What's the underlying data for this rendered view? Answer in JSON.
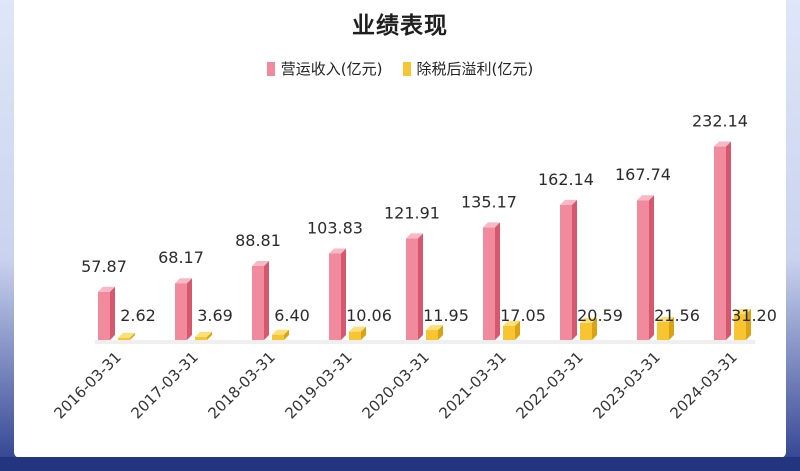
{
  "chart_data": {
    "type": "bar",
    "title": "业绩表现",
    "categories": [
      "2016-03-31",
      "2017-03-31",
      "2018-03-31",
      "2019-03-31",
      "2020-03-31",
      "2021-03-31",
      "2022-03-31",
      "2023-03-31",
      "2024-03-31"
    ],
    "series": [
      {
        "name": "营运收入(亿元)",
        "color": "#f08a9c",
        "values": [
          57.87,
          68.17,
          88.81,
          103.83,
          121.91,
          135.17,
          162.14,
          167.74,
          232.14
        ]
      },
      {
        "name": "除税后溢利(亿元)",
        "color": "#f7c531",
        "values": [
          2.62,
          3.69,
          6.4,
          10.06,
          11.95,
          17.05,
          20.59,
          21.56,
          31.2
        ]
      }
    ],
    "labels": {
      "revenue": [
        "57.87",
        "68.17",
        "88.81",
        "103.83",
        "121.91",
        "135.17",
        "162.14",
        "167.74",
        "232.14"
      ],
      "profit": [
        "2.62",
        "3.69",
        "6.40",
        "10.06",
        "11.95",
        "17.05",
        "20.59",
        "21.56",
        "31.20"
      ]
    },
    "xlabel": "",
    "ylabel": "",
    "ylim": [
      0,
      240
    ],
    "legend": "top-center",
    "grid": false
  }
}
